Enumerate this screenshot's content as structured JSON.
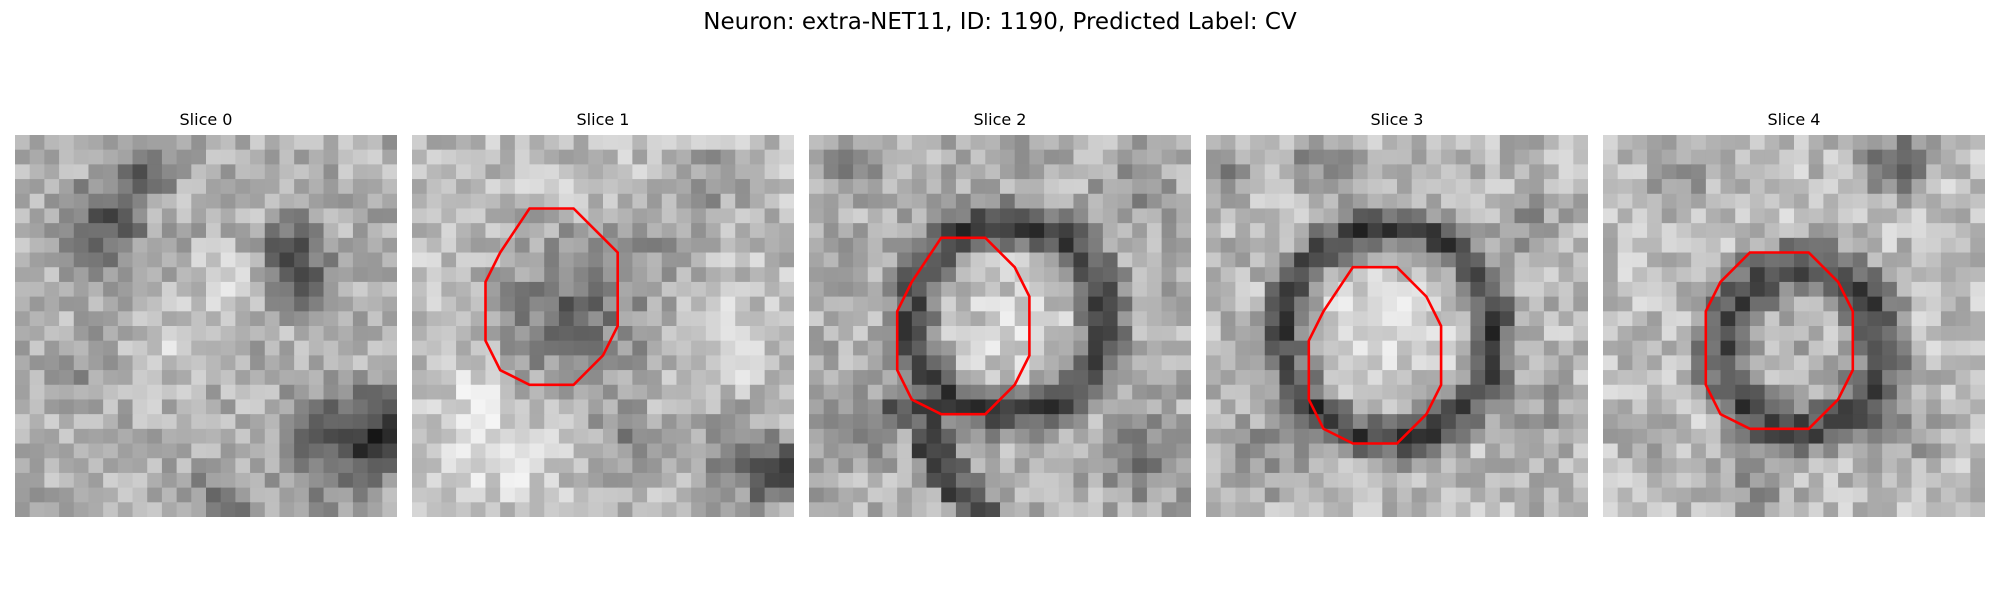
{
  "figure": {
    "title": "Neuron: extra-NET11, ID: 1190, Predicted Label: CV"
  },
  "colors": {
    "contour": "#ff0000",
    "background": "#ffffff"
  },
  "panels": [
    {
      "title": "Slice 0",
      "has_contour": false,
      "description": "grayscale EM patch, scattered dark blobs, no outline"
    },
    {
      "title": "Slice 1",
      "has_contour": true,
      "description": "dark round vesicle outlined in red octagon"
    },
    {
      "title": "Slice 2",
      "has_contour": true,
      "description": "ring-shaped dark membrane with bright interior, red outline"
    },
    {
      "title": "Slice 3",
      "has_contour": true,
      "description": "dark ring with bright center, red outline"
    },
    {
      "title": "Slice 4",
      "has_contour": true,
      "description": "dense dark ring, red outline"
    }
  ]
}
